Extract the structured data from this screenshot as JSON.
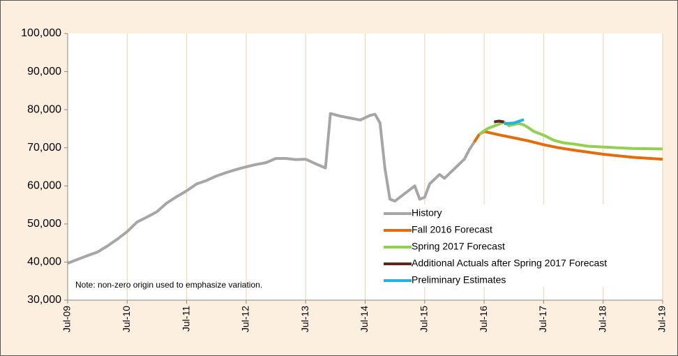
{
  "chart_data": {
    "type": "line",
    "note": "Note: non-zero origin used to emphasize variation.",
    "xlim": [
      "2009-07",
      "2019-07"
    ],
    "xticks": [
      {
        "value": "2009-07",
        "label": "Jul-09"
      },
      {
        "value": "2010-07",
        "label": "Jul-10"
      },
      {
        "value": "2011-07",
        "label": "Jul-11"
      },
      {
        "value": "2012-07",
        "label": "Jul-12"
      },
      {
        "value": "2013-07",
        "label": "Jul-13"
      },
      {
        "value": "2014-07",
        "label": "Jul-14"
      },
      {
        "value": "2015-07",
        "label": "Jul-15"
      },
      {
        "value": "2016-07",
        "label": "Jul-16"
      },
      {
        "value": "2017-07",
        "label": "Jul-17"
      },
      {
        "value": "2018-07",
        "label": "Jul-18"
      },
      {
        "value": "2019-07",
        "label": "Jul-19"
      }
    ],
    "ylim": [
      30000,
      100000
    ],
    "yticks": [
      {
        "value": 30000,
        "label": "30,000"
      },
      {
        "value": 40000,
        "label": "40,000"
      },
      {
        "value": 50000,
        "label": "50,000"
      },
      {
        "value": 60000,
        "label": "60,000"
      },
      {
        "value": 70000,
        "label": "70,000"
      },
      {
        "value": 80000,
        "label": "80,000"
      },
      {
        "value": 90000,
        "label": "90,000"
      },
      {
        "value": 100000,
        "label": "100,000"
      }
    ],
    "grid": "x",
    "legend": "lower right",
    "series": [
      {
        "name": "History",
        "color": "#a6a6a6",
        "x": [
          "2009-07",
          "2009-09",
          "2009-11",
          "2010-01",
          "2010-03",
          "2010-05",
          "2010-07",
          "2010-09",
          "2010-11",
          "2011-01",
          "2011-03",
          "2011-05",
          "2011-07",
          "2011-09",
          "2011-11",
          "2012-01",
          "2012-03",
          "2012-05",
          "2012-07",
          "2012-09",
          "2012-11",
          "2013-01",
          "2013-03",
          "2013-05",
          "2013-07",
          "2013-09",
          "2013-11",
          "2013-12",
          "2014-02",
          "2014-04",
          "2014-06",
          "2014-08",
          "2014-09",
          "2014-10",
          "2014-11",
          "2014-12",
          "2015-01",
          "2015-03",
          "2015-05",
          "2015-06",
          "2015-07",
          "2015-08",
          "2015-10",
          "2015-11",
          "2016-01",
          "2016-03",
          "2016-04",
          "2016-05"
        ],
        "values": [
          39700,
          40700,
          41700,
          42600,
          44200,
          46000,
          48000,
          50500,
          51800,
          53200,
          55500,
          57200,
          58700,
          60500,
          61400,
          62600,
          63500,
          64300,
          65000,
          65600,
          66100,
          67200,
          67200,
          66900,
          67000,
          65800,
          64700,
          79000,
          78300,
          77800,
          77300,
          78500,
          78800,
          76500,
          64500,
          56500,
          56000,
          58000,
          60000,
          56500,
          57000,
          60500,
          63000,
          62000,
          64500,
          67000,
          69500,
          71500
        ]
      },
      {
        "name": "Fall 2016 Forecast",
        "color": "#e46c0a",
        "x": [
          "2016-05",
          "2016-06",
          "2016-07",
          "2016-08",
          "2016-10",
          "2017-01",
          "2017-04",
          "2017-07",
          "2017-10",
          "2018-01",
          "2018-07",
          "2019-01",
          "2019-07"
        ],
        "values": [
          71500,
          73500,
          74300,
          74000,
          73400,
          72600,
          71800,
          70800,
          70000,
          69400,
          68300,
          67500,
          67000
        ]
      },
      {
        "name": "Spring 2017 Forecast",
        "color": "#92d050",
        "x": [
          "2016-06",
          "2016-07",
          "2016-08",
          "2016-09",
          "2016-10",
          "2016-11",
          "2016-12",
          "2017-01",
          "2017-02",
          "2017-03",
          "2017-04",
          "2017-05",
          "2017-07",
          "2017-09",
          "2017-11",
          "2018-01",
          "2018-04",
          "2018-07",
          "2018-10",
          "2019-01",
          "2019-07"
        ],
        "values": [
          73500,
          74500,
          75200,
          75700,
          76200,
          76800,
          75800,
          76100,
          76400,
          76000,
          75200,
          74300,
          73300,
          72000,
          71300,
          71000,
          70400,
          70200,
          70000,
          69800,
          69700
        ]
      },
      {
        "name": "Additional Actuals after Spring 2017 Forecast",
        "color": "#5a2a1e",
        "x": [
          "2016-09",
          "2016-10",
          "2016-11"
        ],
        "values": [
          76800,
          77000,
          76800
        ]
      },
      {
        "name": "Preliminary Estimates",
        "color": "#1fb4e6",
        "x": [
          "2016-11",
          "2017-01",
          "2017-03"
        ],
        "values": [
          76300,
          76500,
          77400
        ]
      }
    ]
  }
}
